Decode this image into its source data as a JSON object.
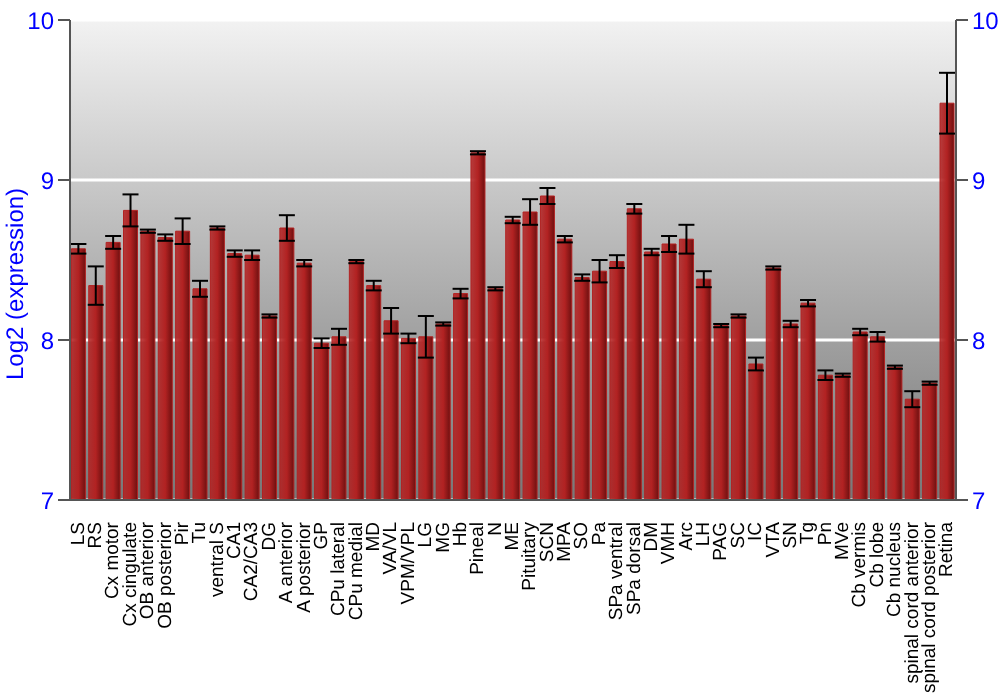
{
  "chart_data": {
    "type": "bar",
    "ylabel": "Log2 (expression)",
    "categories": [
      "LS",
      "RS",
      "Cx motor",
      "Cx cingulate",
      "OB anterior",
      "OB posterior",
      "Pir",
      "Tu",
      "ventral S",
      "CA1",
      "CA2/CA3",
      "DG",
      "A anterior",
      "A posterior",
      "GP",
      "CPu lateral",
      "CPu medial",
      "MD",
      "VA/VL",
      "VPM/VPL",
      "LG",
      "MG",
      "Hb",
      "Pineal",
      "N",
      "ME",
      "Pituitary",
      "SCN",
      "MPA",
      "SO",
      "Pa",
      "SPa ventral",
      "SPa dorsal",
      "DM",
      "VMH",
      "Arc",
      "LH",
      "PAG",
      "SC",
      "IC",
      "VTA",
      "SN",
      "Tg",
      "Pn",
      "MVe",
      "Cb vermis",
      "Cb lobe",
      "Cb nucleus",
      "spinal cord anterior",
      "spinal cord posterior",
      "Retina"
    ],
    "values": [
      8.57,
      8.34,
      8.61,
      8.81,
      8.68,
      8.64,
      8.68,
      8.32,
      8.7,
      8.54,
      8.53,
      8.15,
      8.7,
      8.48,
      7.98,
      8.02,
      8.49,
      8.34,
      8.12,
      8.01,
      8.02,
      8.1,
      8.29,
      9.17,
      8.32,
      8.75,
      8.8,
      8.9,
      8.63,
      8.39,
      8.43,
      8.49,
      8.82,
      8.55,
      8.6,
      8.63,
      8.38,
      8.09,
      8.15,
      7.85,
      8.45,
      8.1,
      8.23,
      7.78,
      7.78,
      8.05,
      8.02,
      7.83,
      7.63,
      7.73,
      9.48
    ],
    "errors": [
      0.03,
      0.12,
      0.04,
      0.1,
      0.01,
      0.02,
      0.08,
      0.05,
      0.01,
      0.02,
      0.03,
      0.01,
      0.08,
      0.02,
      0.03,
      0.05,
      0.01,
      0.03,
      0.08,
      0.03,
      0.13,
      0.01,
      0.03,
      0.01,
      0.01,
      0.02,
      0.08,
      0.05,
      0.02,
      0.02,
      0.07,
      0.04,
      0.03,
      0.02,
      0.05,
      0.09,
      0.05,
      0.01,
      0.01,
      0.04,
      0.01,
      0.02,
      0.02,
      0.03,
      0.01,
      0.02,
      0.03,
      0.01,
      0.05,
      0.01,
      0.19
    ],
    "color": "#b22222",
    "ylim": [
      7,
      10
    ],
    "yticks": [
      7,
      8,
      9,
      10
    ],
    "y2lim": [
      7,
      10
    ],
    "y2ticks": [
      7,
      8,
      9,
      10
    ],
    "grid": "y"
  }
}
